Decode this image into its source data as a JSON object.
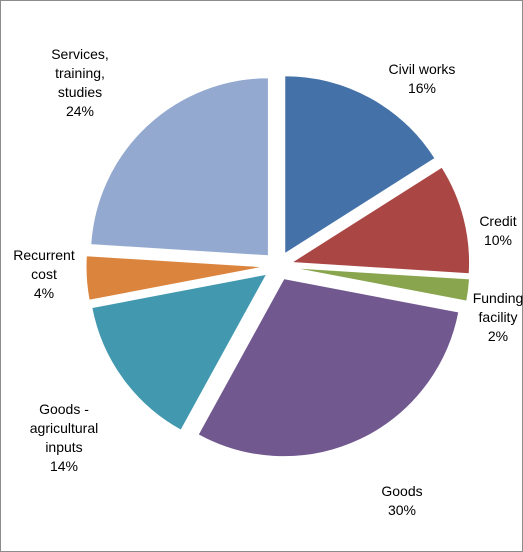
{
  "chart_data": {
    "type": "pie",
    "exploded": true,
    "slices": [
      {
        "label_lines": [
          "Civil works",
          "16%"
        ],
        "value": 16,
        "color": "#4472a8"
      },
      {
        "label_lines": [
          "Credit",
          "10%"
        ],
        "value": 10,
        "color": "#aa4644"
      },
      {
        "label_lines": [
          "Funding",
          "facility",
          "2%"
        ],
        "value": 2,
        "color": "#89a54e"
      },
      {
        "label_lines": [
          "Goods",
          "30%"
        ],
        "value": 30,
        "color": "#71588f"
      },
      {
        "label_lines": [
          "Goods -",
          "agricultural",
          "inputs",
          "14%"
        ],
        "value": 14,
        "color": "#4198af"
      },
      {
        "label_lines": [
          "Recurrent",
          "cost",
          "4%"
        ],
        "value": 4,
        "color": "#db843d"
      },
      {
        "label_lines": [
          "Services,",
          "training,",
          "studies",
          "24%"
        ],
        "value": 24,
        "color": "#93a9cf"
      }
    ]
  }
}
